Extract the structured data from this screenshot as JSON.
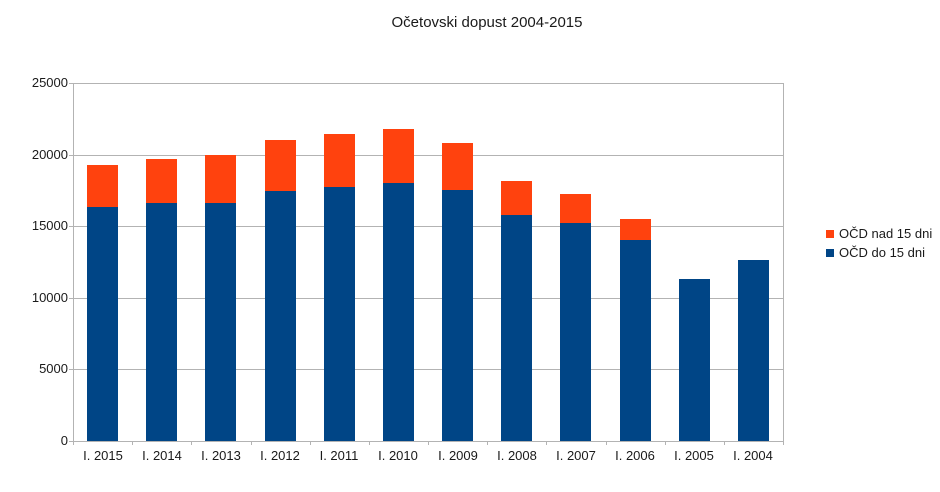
{
  "chart_data": {
    "type": "bar",
    "stacked": true,
    "title": "Očetovski dopust 2004-2015",
    "categories": [
      "I. 2015",
      "I. 2014",
      "I. 2013",
      "I. 2012",
      "I. 2011",
      "I. 2010",
      "I. 2009",
      "I. 2008",
      "I. 2007",
      "I. 2006",
      "I. 2005",
      "I. 2004"
    ],
    "series": [
      {
        "name": "OČD do 15 dni",
        "color": "#004586",
        "values": [
          16330,
          16650,
          16600,
          17450,
          17750,
          18000,
          17500,
          15780,
          15250,
          14020,
          11300,
          12650
        ]
      },
      {
        "name": "OČD nad 15 dni",
        "color": "#FF420E",
        "values": [
          2920,
          3050,
          3350,
          3600,
          3700,
          3800,
          3300,
          2370,
          2000,
          1500,
          0,
          0
        ]
      }
    ],
    "ylim": [
      0,
      25000
    ],
    "ytick_step": 5000,
    "yticks": [
      "0",
      "5000",
      "10000",
      "15000",
      "20000",
      "25000"
    ],
    "grid": true,
    "legend_position": "right",
    "legend": [
      {
        "label": "OČD nad 15 dni",
        "color": "#FF420E"
      },
      {
        "label": "OČD do 15 dni",
        "color": "#004586"
      }
    ],
    "colors": {
      "background": "#ffffff",
      "gridline": "#b3b3b3",
      "text": "#1a1a1a"
    }
  }
}
